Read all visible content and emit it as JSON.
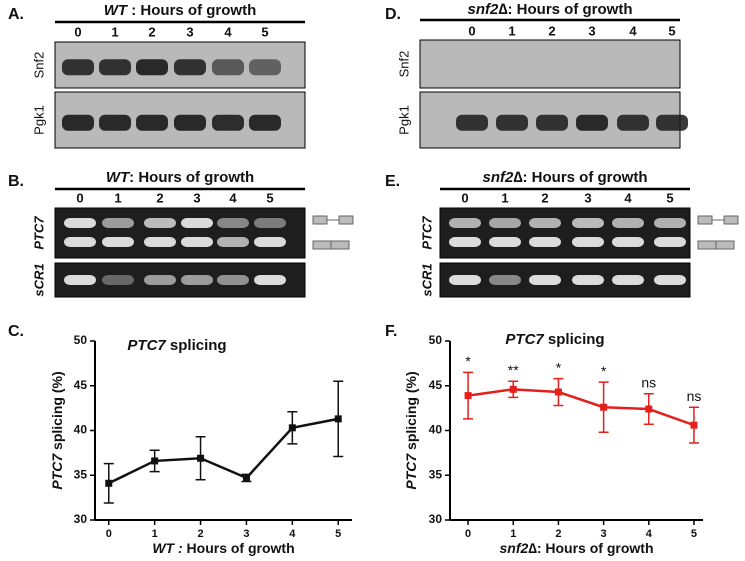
{
  "panels": [
    {
      "label": "A.",
      "title": {
        "italic": "WT",
        "rest": " : Hours of growth"
      },
      "lanes": [
        "0",
        "1",
        "2",
        "3",
        "4",
        "5"
      ],
      "rows": [
        "Snf2",
        "Pgk1"
      ]
    },
    {
      "label": "D.",
      "title": {
        "italic": "snf2∆",
        "rest": ": Hours of growth"
      },
      "lanes": [
        "0",
        "1",
        "2",
        "3",
        "4",
        "5"
      ],
      "rows": [
        "Snf2",
        "Pgk1"
      ]
    },
    {
      "label": "B.",
      "title": {
        "italic": "WT",
        "rest": ": Hours of growth"
      },
      "lanes": [
        "0",
        "1",
        "2",
        "3",
        "4",
        "5"
      ],
      "rows": [
        "PTC7",
        "sCR1"
      ]
    },
    {
      "label": "E.",
      "title": {
        "italic": "snf2",
        "rest": "∆: Hours of growth"
      },
      "lanes": [
        "0",
        "1",
        "2",
        "3",
        "4",
        "5"
      ],
      "rows": [
        "PTC7",
        "sCR1"
      ]
    }
  ],
  "chart_data": [
    {
      "type": "line",
      "panel": "C.",
      "title": {
        "italic": "PTC7",
        "rest": " splicing"
      },
      "y_label": {
        "italic": "PTC7",
        "rest": " splicing (%)"
      },
      "x_label": {
        "italic": "WT :",
        "rest": " Hours of growth"
      },
      "x": [
        0,
        1,
        2,
        3,
        4,
        5
      ],
      "xlim": [
        -0.3,
        5.3
      ],
      "xticks": [
        0,
        1,
        2,
        3,
        4,
        5
      ],
      "ylim": [
        30,
        50
      ],
      "yticks": [
        30,
        35,
        40,
        45,
        50
      ],
      "series": [
        {
          "color": "#111111",
          "values": [
            34.1,
            36.6,
            36.9,
            34.7,
            40.3,
            41.3
          ],
          "errors": [
            2.2,
            1.2,
            2.4,
            0.4,
            1.8,
            4.2
          ]
        }
      ]
    },
    {
      "type": "line",
      "panel": "F.",
      "title": {
        "italic": "PTC7",
        "rest": " splicing"
      },
      "y_label": {
        "italic": "PTC7",
        "rest": " splicing (%)"
      },
      "x_label": {
        "italic": "snf2",
        "rest": "∆: Hours of growth"
      },
      "x": [
        0,
        1,
        2,
        3,
        4,
        5
      ],
      "xlim": [
        -0.4,
        5.2
      ],
      "xticks": [
        0,
        1,
        2,
        3,
        4,
        5
      ],
      "ylim": [
        30,
        50
      ],
      "yticks": [
        30,
        35,
        40,
        45,
        50
      ],
      "series": [
        {
          "color": "#e3201b",
          "values": [
            43.9,
            44.6,
            44.3,
            42.6,
            42.4,
            40.6
          ],
          "errors": [
            2.6,
            0.9,
            1.5,
            2.8,
            1.7,
            2.0
          ]
        }
      ],
      "annotations": [
        "*",
        "**",
        "*",
        "*",
        "ns",
        "ns"
      ]
    }
  ]
}
